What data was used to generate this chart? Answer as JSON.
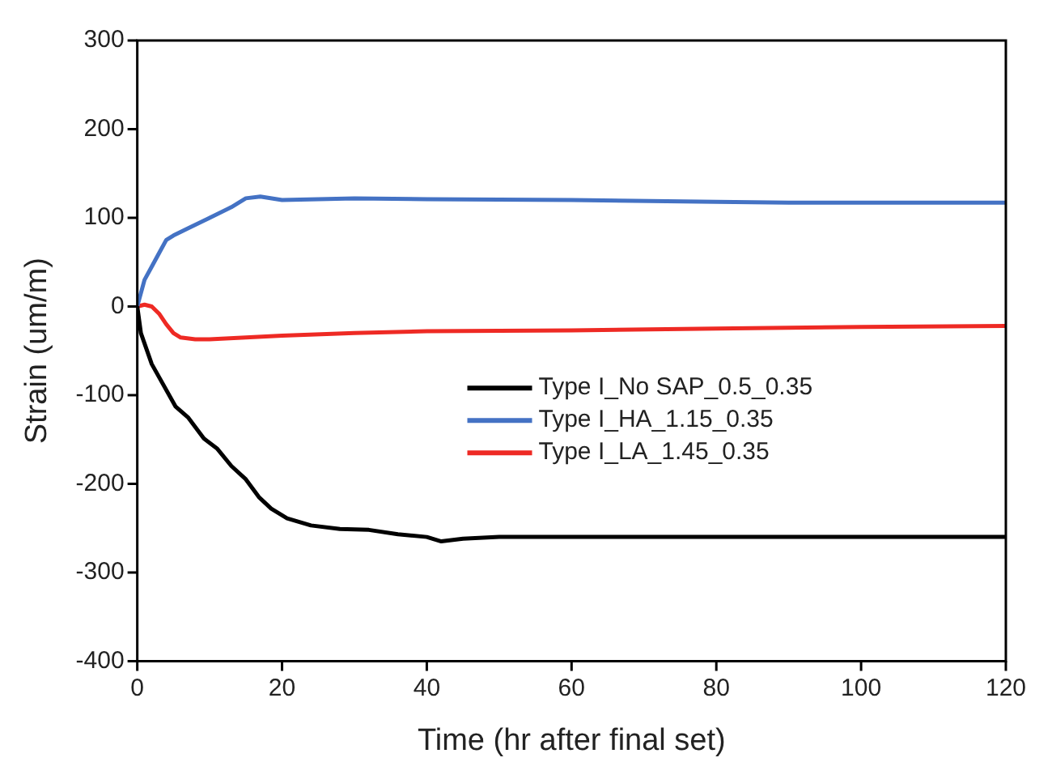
{
  "chart_data": {
    "type": "line",
    "xlabel": "Time (hr after final set)",
    "ylabel": "Strain (um/m)",
    "xlim": [
      0,
      120
    ],
    "xticks": [
      0,
      20,
      40,
      60,
      80,
      100,
      120
    ],
    "ylim": [
      -400,
      300
    ],
    "yticks": [
      -400,
      -300,
      -200,
      -100,
      0,
      100,
      200,
      300
    ],
    "grid": false,
    "legend": "right",
    "marker": "none",
    "line_style": "solid",
    "series": [
      {
        "name": "Type I_No SAP_0.5_0.35",
        "color": "#000000",
        "x": [
          0,
          0.5,
          2,
          5.3,
          7,
          9.2,
          11,
          13,
          15,
          16.8,
          18.5,
          20.7,
          24,
          28,
          32,
          36,
          40,
          42,
          45,
          50,
          60,
          70,
          80,
          90,
          100,
          110,
          120
        ],
        "values": [
          0,
          -30,
          -65,
          -113,
          -125,
          -149,
          -160,
          -180,
          -195,
          -215,
          -228,
          -239,
          -247,
          -251,
          -252,
          -257,
          -260,
          -265,
          -262,
          -260,
          -260,
          -260,
          -260,
          -260,
          -260,
          -260,
          -260
        ]
      },
      {
        "name": "Type I_HA_1.15_0.35",
        "color": "#4472c4",
        "x": [
          0,
          1,
          2,
          3,
          4,
          5,
          7,
          10,
          13,
          15,
          17,
          20,
          30,
          40,
          60,
          80,
          90,
          100,
          120
        ],
        "values": [
          0,
          30,
          45,
          60,
          75,
          80,
          88,
          100,
          112,
          122,
          124,
          120,
          122,
          121,
          120,
          118,
          117,
          117,
          117
        ]
      },
      {
        "name": "Type I_LA_1.45_0.35",
        "color": "#ee2a24",
        "x": [
          0,
          1,
          2,
          3,
          4,
          5,
          6,
          8,
          10,
          15,
          20,
          30,
          40,
          60,
          80,
          100,
          120
        ],
        "values": [
          0,
          2,
          0,
          -8,
          -20,
          -30,
          -35,
          -37,
          -37,
          -35,
          -33,
          -30,
          -28,
          -27,
          -25,
          -23,
          -22
        ]
      }
    ]
  }
}
